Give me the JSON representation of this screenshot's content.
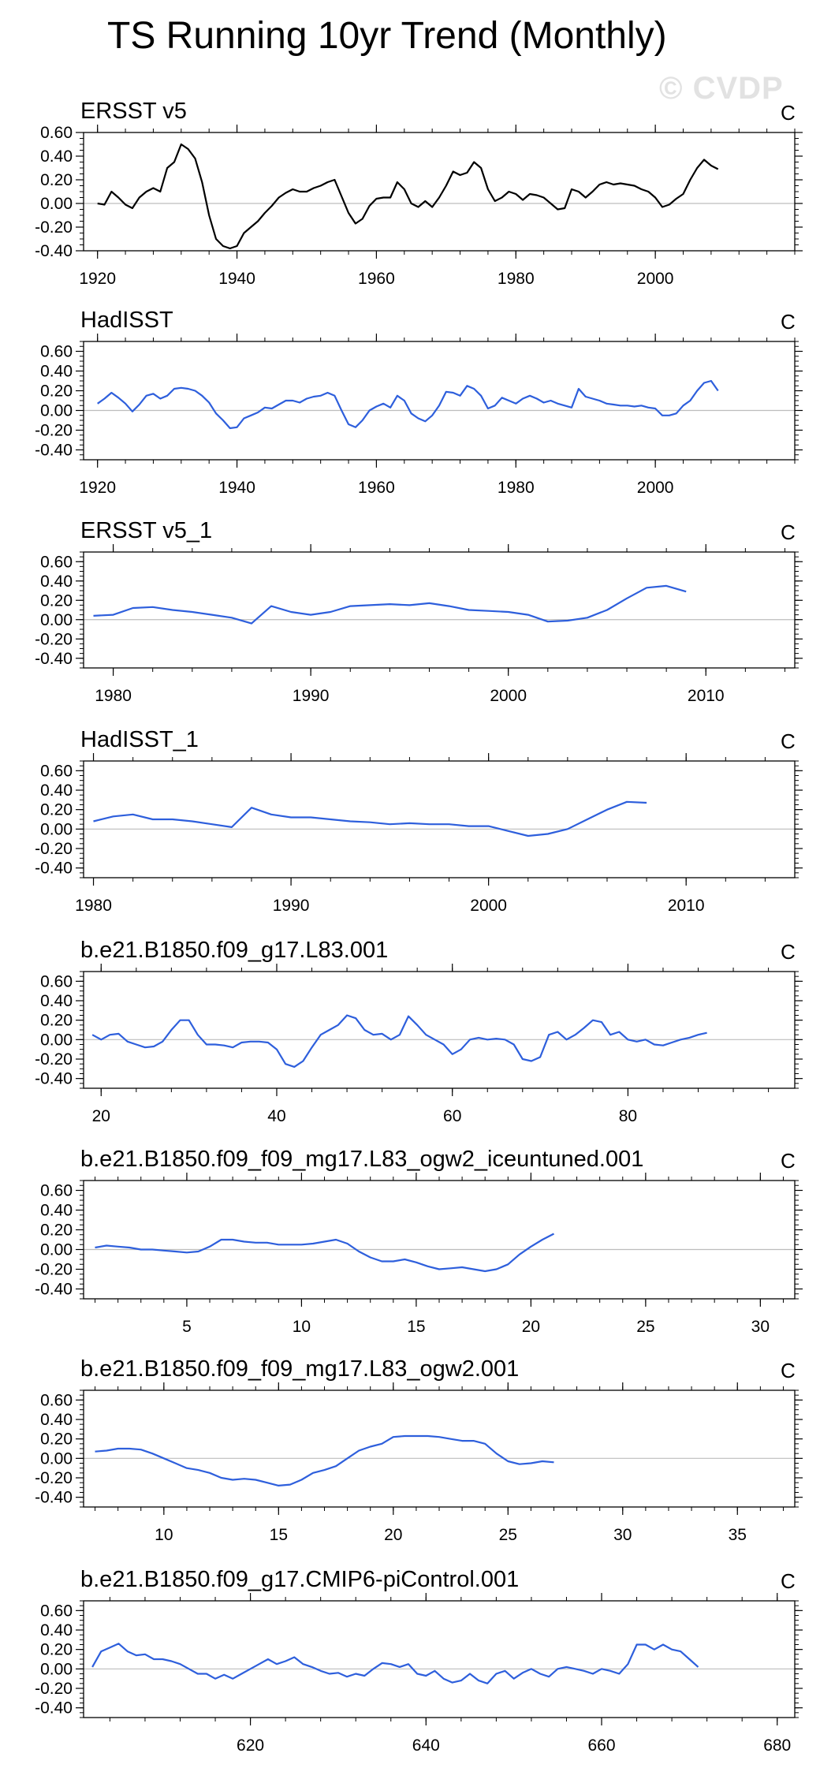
{
  "page": {
    "title": "TS Running 10yr Trend (Monthly)",
    "watermark": "© CVDP"
  },
  "chart_data": [
    {
      "type": "line",
      "title": "ERSST v5",
      "units": "C",
      "color": "#000000",
      "xlim": [
        1918,
        2020
      ],
      "ylim": [
        -0.4,
        0.6
      ],
      "xticks": [
        1920,
        1940,
        1960,
        1980,
        2000
      ],
      "yticks": [
        -0.4,
        -0.2,
        0.0,
        0.2,
        0.4,
        0.6
      ],
      "x": [
        1920,
        1921,
        1922,
        1923,
        1924,
        1925,
        1926,
        1927,
        1928,
        1929,
        1930,
        1931,
        1932,
        1933,
        1934,
        1935,
        1936,
        1937,
        1938,
        1939,
        1940,
        1941,
        1942,
        1943,
        1944,
        1945,
        1946,
        1947,
        1948,
        1949,
        1950,
        1951,
        1952,
        1953,
        1954,
        1955,
        1956,
        1957,
        1958,
        1959,
        1960,
        1961,
        1962,
        1963,
        1964,
        1965,
        1966,
        1967,
        1968,
        1969,
        1970,
        1971,
        1972,
        1973,
        1974,
        1975,
        1976,
        1977,
        1978,
        1979,
        1980,
        1981,
        1982,
        1983,
        1984,
        1985,
        1986,
        1987,
        1988,
        1989,
        1990,
        1991,
        1992,
        1993,
        1994,
        1995,
        1996,
        1997,
        1998,
        1999,
        2000,
        2001,
        2002,
        2003,
        2004,
        2005,
        2006,
        2007,
        2008,
        2009
      ],
      "y": [
        0.0,
        -0.01,
        0.1,
        0.05,
        -0.01,
        -0.04,
        0.05,
        0.1,
        0.13,
        0.1,
        0.3,
        0.35,
        0.5,
        0.46,
        0.38,
        0.18,
        -0.1,
        -0.3,
        -0.36,
        -0.38,
        -0.36,
        -0.25,
        -0.2,
        -0.15,
        -0.08,
        -0.02,
        0.05,
        0.09,
        0.12,
        0.1,
        0.1,
        0.13,
        0.15,
        0.18,
        0.2,
        0.06,
        -0.08,
        -0.17,
        -0.13,
        -0.02,
        0.04,
        0.05,
        0.05,
        0.18,
        0.12,
        0.0,
        -0.03,
        0.02,
        -0.03,
        0.05,
        0.15,
        0.27,
        0.24,
        0.26,
        0.35,
        0.3,
        0.12,
        0.02,
        0.05,
        0.1,
        0.08,
        0.03,
        0.08,
        0.07,
        0.05,
        0.0,
        -0.05,
        -0.04,
        0.12,
        0.1,
        0.05,
        0.1,
        0.16,
        0.18,
        0.16,
        0.17,
        0.16,
        0.15,
        0.12,
        0.1,
        0.05,
        -0.03,
        -0.01,
        0.04,
        0.08,
        0.2,
        0.3,
        0.37,
        0.32,
        0.29
      ]
    },
    {
      "type": "line",
      "title": "HadISST",
      "units": "C",
      "color": "#2e5fdc",
      "xlim": [
        1918,
        2020
      ],
      "ylim": [
        -0.5,
        0.7
      ],
      "xticks": [
        1920,
        1940,
        1960,
        1980,
        2000
      ],
      "yticks": [
        -0.4,
        -0.2,
        0.0,
        0.2,
        0.4,
        0.6
      ],
      "x": [
        1920,
        1921,
        1922,
        1923,
        1924,
        1925,
        1926,
        1927,
        1928,
        1929,
        1930,
        1931,
        1932,
        1933,
        1934,
        1935,
        1936,
        1937,
        1938,
        1939,
        1940,
        1941,
        1942,
        1943,
        1944,
        1945,
        1946,
        1947,
        1948,
        1949,
        1950,
        1951,
        1952,
        1953,
        1954,
        1955,
        1956,
        1957,
        1958,
        1959,
        1960,
        1961,
        1962,
        1963,
        1964,
        1965,
        1966,
        1967,
        1968,
        1969,
        1970,
        1971,
        1972,
        1973,
        1974,
        1975,
        1976,
        1977,
        1978,
        1979,
        1980,
        1981,
        1982,
        1983,
        1984,
        1985,
        1986,
        1987,
        1988,
        1989,
        1990,
        1991,
        1992,
        1993,
        1994,
        1995,
        1996,
        1997,
        1998,
        1999,
        2000,
        2001,
        2002,
        2003,
        2004,
        2005,
        2006,
        2007,
        2008,
        2009
      ],
      "y": [
        0.07,
        0.12,
        0.18,
        0.13,
        0.07,
        -0.01,
        0.06,
        0.15,
        0.17,
        0.12,
        0.15,
        0.22,
        0.23,
        0.22,
        0.2,
        0.15,
        0.08,
        -0.03,
        -0.1,
        -0.18,
        -0.17,
        -0.08,
        -0.05,
        -0.02,
        0.03,
        0.02,
        0.06,
        0.1,
        0.1,
        0.08,
        0.12,
        0.14,
        0.15,
        0.18,
        0.15,
        0.0,
        -0.14,
        -0.17,
        -0.1,
        0.0,
        0.04,
        0.07,
        0.03,
        0.15,
        0.1,
        -0.03,
        -0.08,
        -0.11,
        -0.05,
        0.05,
        0.19,
        0.18,
        0.15,
        0.25,
        0.22,
        0.15,
        0.02,
        0.05,
        0.13,
        0.1,
        0.07,
        0.12,
        0.15,
        0.12,
        0.08,
        0.1,
        0.07,
        0.05,
        0.03,
        0.22,
        0.14,
        0.12,
        0.1,
        0.07,
        0.06,
        0.05,
        0.05,
        0.04,
        0.05,
        0.03,
        0.02,
        -0.05,
        -0.05,
        -0.03,
        0.05,
        0.1,
        0.2,
        0.28,
        0.3,
        0.2
      ]
    },
    {
      "type": "line",
      "title": "ERSST v5_1",
      "units": "C",
      "color": "#2e5fdc",
      "xlim": [
        1978.5,
        2014.5
      ],
      "ylim": [
        -0.5,
        0.7
      ],
      "xticks": [
        1980,
        1990,
        2000,
        2010
      ],
      "yticks": [
        -0.4,
        -0.2,
        0.0,
        0.2,
        0.4,
        0.6
      ],
      "x": [
        1979,
        1980,
        1981,
        1982,
        1983,
        1984,
        1985,
        1986,
        1987,
        1988,
        1989,
        1990,
        1991,
        1992,
        1993,
        1994,
        1995,
        1996,
        1997,
        1998,
        1999,
        2000,
        2001,
        2002,
        2003,
        2004,
        2005,
        2006,
        2007,
        2008,
        2009
      ],
      "y": [
        0.04,
        0.05,
        0.12,
        0.13,
        0.1,
        0.08,
        0.05,
        0.02,
        -0.04,
        0.14,
        0.08,
        0.05,
        0.08,
        0.14,
        0.15,
        0.16,
        0.15,
        0.17,
        0.14,
        0.1,
        0.09,
        0.08,
        0.05,
        -0.02,
        -0.01,
        0.02,
        0.1,
        0.22,
        0.33,
        0.35,
        0.29
      ]
    },
    {
      "type": "line",
      "title": "HadISST_1",
      "units": "C",
      "color": "#2e5fdc",
      "xlim": [
        1979.5,
        2015.5
      ],
      "ylim": [
        -0.5,
        0.7
      ],
      "xticks": [
        1980,
        1990,
        2000,
        2010
      ],
      "yticks": [
        -0.4,
        -0.2,
        0.0,
        0.2,
        0.4,
        0.6
      ],
      "x": [
        1980,
        1981,
        1982,
        1983,
        1984,
        1985,
        1986,
        1987,
        1988,
        1989,
        1990,
        1991,
        1992,
        1993,
        1994,
        1995,
        1996,
        1997,
        1998,
        1999,
        2000,
        2001,
        2002,
        2003,
        2004,
        2005,
        2006,
        2007,
        2008
      ],
      "y": [
        0.08,
        0.13,
        0.15,
        0.1,
        0.1,
        0.08,
        0.05,
        0.02,
        0.22,
        0.15,
        0.12,
        0.12,
        0.1,
        0.08,
        0.07,
        0.05,
        0.06,
        0.05,
        0.05,
        0.03,
        0.03,
        -0.02,
        -0.07,
        -0.05,
        0.0,
        0.1,
        0.2,
        0.28,
        0.27
      ]
    },
    {
      "type": "line",
      "title": "b.e21.B1850.f09_g17.L83.001",
      "units": "C",
      "color": "#2e5fdc",
      "xlim": [
        18,
        99
      ],
      "ylim": [
        -0.5,
        0.7
      ],
      "xticks": [
        20,
        40,
        60,
        80
      ],
      "yticks": [
        -0.4,
        -0.2,
        0.0,
        0.2,
        0.4,
        0.6
      ],
      "x": [
        19,
        20,
        21,
        22,
        23,
        24,
        25,
        26,
        27,
        28,
        29,
        30,
        31,
        32,
        33,
        34,
        35,
        36,
        37,
        38,
        39,
        40,
        41,
        42,
        43,
        44,
        45,
        46,
        47,
        48,
        49,
        50,
        51,
        52,
        53,
        54,
        55,
        56,
        57,
        58,
        59,
        60,
        61,
        62,
        63,
        64,
        65,
        66,
        67,
        68,
        69,
        70,
        71,
        72,
        73,
        74,
        75,
        76,
        77,
        78,
        79,
        80,
        81,
        82,
        83,
        84,
        85,
        86,
        87,
        88,
        89
      ],
      "y": [
        0.05,
        0.0,
        0.05,
        0.06,
        -0.02,
        -0.05,
        -0.08,
        -0.07,
        -0.02,
        0.1,
        0.2,
        0.2,
        0.05,
        -0.05,
        -0.05,
        -0.06,
        -0.08,
        -0.03,
        -0.02,
        -0.02,
        -0.03,
        -0.1,
        -0.25,
        -0.28,
        -0.22,
        -0.08,
        0.05,
        0.1,
        0.15,
        0.25,
        0.22,
        0.1,
        0.05,
        0.06,
        0.0,
        0.05,
        0.24,
        0.15,
        0.05,
        0.0,
        -0.05,
        -0.15,
        -0.1,
        0.0,
        0.02,
        0.0,
        0.01,
        0.0,
        -0.05,
        -0.2,
        -0.22,
        -0.18,
        0.05,
        0.08,
        0.0,
        0.05,
        0.12,
        0.2,
        0.18,
        0.05,
        0.08,
        0.0,
        -0.02,
        0.0,
        -0.05,
        -0.06,
        -0.03,
        0.0,
        0.02,
        0.05,
        0.07
      ]
    },
    {
      "type": "line",
      "title": "b.e21.B1850.f09_f09_mg17.L83_ogw2_iceuntuned.001",
      "units": "C",
      "color": "#2e5fdc",
      "xlim": [
        0.5,
        31.5
      ],
      "ylim": [
        -0.5,
        0.7
      ],
      "xticks": [
        5,
        10,
        15,
        20,
        25,
        30
      ],
      "yticks": [
        -0.4,
        -0.2,
        0.0,
        0.2,
        0.4,
        0.6
      ],
      "x": [
        1,
        1.5,
        2,
        2.5,
        3,
        3.5,
        4,
        4.5,
        5,
        5.5,
        6,
        6.5,
        7,
        7.5,
        8,
        8.5,
        9,
        9.5,
        10,
        10.5,
        11,
        11.5,
        12,
        12.5,
        13,
        13.5,
        14,
        14.5,
        15,
        15.5,
        16,
        16.5,
        17,
        17.5,
        18,
        18.5,
        19,
        19.5,
        20,
        20.5,
        21
      ],
      "y": [
        0.02,
        0.04,
        0.03,
        0.02,
        0.0,
        0.0,
        -0.01,
        -0.02,
        -0.03,
        -0.02,
        0.03,
        0.1,
        0.1,
        0.08,
        0.07,
        0.07,
        0.05,
        0.05,
        0.05,
        0.06,
        0.08,
        0.1,
        0.06,
        -0.02,
        -0.08,
        -0.12,
        -0.12,
        -0.1,
        -0.13,
        -0.17,
        -0.2,
        -0.19,
        -0.18,
        -0.2,
        -0.22,
        -0.2,
        -0.15,
        -0.05,
        0.03,
        0.1,
        0.16
      ]
    },
    {
      "type": "line",
      "title": "b.e21.B1850.f09_f09_mg17.L83_ogw2.001",
      "units": "C",
      "color": "#2e5fdc",
      "xlim": [
        6.5,
        37.5
      ],
      "ylim": [
        -0.5,
        0.7
      ],
      "xticks": [
        10,
        15,
        20,
        25,
        30,
        35
      ],
      "yticks": [
        -0.4,
        -0.2,
        0.0,
        0.2,
        0.4,
        0.6
      ],
      "x": [
        7,
        7.5,
        8,
        8.5,
        9,
        9.5,
        10,
        10.5,
        11,
        11.5,
        12,
        12.5,
        13,
        13.5,
        14,
        14.5,
        15,
        15.5,
        16,
        16.5,
        17,
        17.5,
        18,
        18.5,
        19,
        19.5,
        20,
        20.5,
        21,
        21.5,
        22,
        22.5,
        23,
        23.5,
        24,
        24.5,
        25,
        25.5,
        26,
        26.5,
        27
      ],
      "y": [
        0.07,
        0.08,
        0.1,
        0.1,
        0.09,
        0.05,
        0.0,
        -0.05,
        -0.1,
        -0.12,
        -0.15,
        -0.2,
        -0.22,
        -0.21,
        -0.22,
        -0.25,
        -0.28,
        -0.27,
        -0.22,
        -0.15,
        -0.12,
        -0.08,
        0.0,
        0.08,
        0.12,
        0.15,
        0.22,
        0.23,
        0.23,
        0.23,
        0.22,
        0.2,
        0.18,
        0.18,
        0.15,
        0.05,
        -0.03,
        -0.06,
        -0.05,
        -0.03,
        -0.04
      ]
    },
    {
      "type": "line",
      "title": "b.e21.B1850.f09_g17.CMIP6-piControl.001",
      "units": "C",
      "color": "#2e5fdc",
      "xlim": [
        601,
        682
      ],
      "ylim": [
        -0.5,
        0.7
      ],
      "xticks": [
        620,
        640,
        660,
        680
      ],
      "yticks": [
        -0.4,
        -0.2,
        0.0,
        0.2,
        0.4,
        0.6
      ],
      "x": [
        602,
        603,
        604,
        605,
        606,
        607,
        608,
        609,
        610,
        611,
        612,
        613,
        614,
        615,
        616,
        617,
        618,
        619,
        620,
        621,
        622,
        623,
        624,
        625,
        626,
        627,
        628,
        629,
        630,
        631,
        632,
        633,
        634,
        635,
        636,
        637,
        638,
        639,
        640,
        641,
        642,
        643,
        644,
        645,
        646,
        647,
        648,
        649,
        650,
        651,
        652,
        653,
        654,
        655,
        656,
        657,
        658,
        659,
        660,
        661,
        662,
        663,
        664,
        665,
        666,
        667,
        668,
        669,
        670,
        671
      ],
      "y": [
        0.02,
        0.18,
        0.22,
        0.26,
        0.18,
        0.14,
        0.15,
        0.1,
        0.1,
        0.08,
        0.05,
        0.0,
        -0.05,
        -0.05,
        -0.1,
        -0.06,
        -0.1,
        -0.05,
        0.0,
        0.05,
        0.1,
        0.05,
        0.08,
        0.12,
        0.05,
        0.02,
        -0.02,
        -0.05,
        -0.04,
        -0.08,
        -0.05,
        -0.07,
        0.0,
        0.06,
        0.05,
        0.02,
        0.05,
        -0.05,
        -0.07,
        -0.02,
        -0.1,
        -0.14,
        -0.12,
        -0.05,
        -0.12,
        -0.15,
        -0.05,
        -0.02,
        -0.1,
        -0.04,
        0.0,
        -0.05,
        -0.08,
        0.0,
        0.02,
        0.0,
        -0.02,
        -0.05,
        0.0,
        -0.02,
        -0.05,
        0.05,
        0.25,
        0.25,
        0.2,
        0.25,
        0.2,
        0.18,
        0.1,
        0.02
      ]
    }
  ]
}
